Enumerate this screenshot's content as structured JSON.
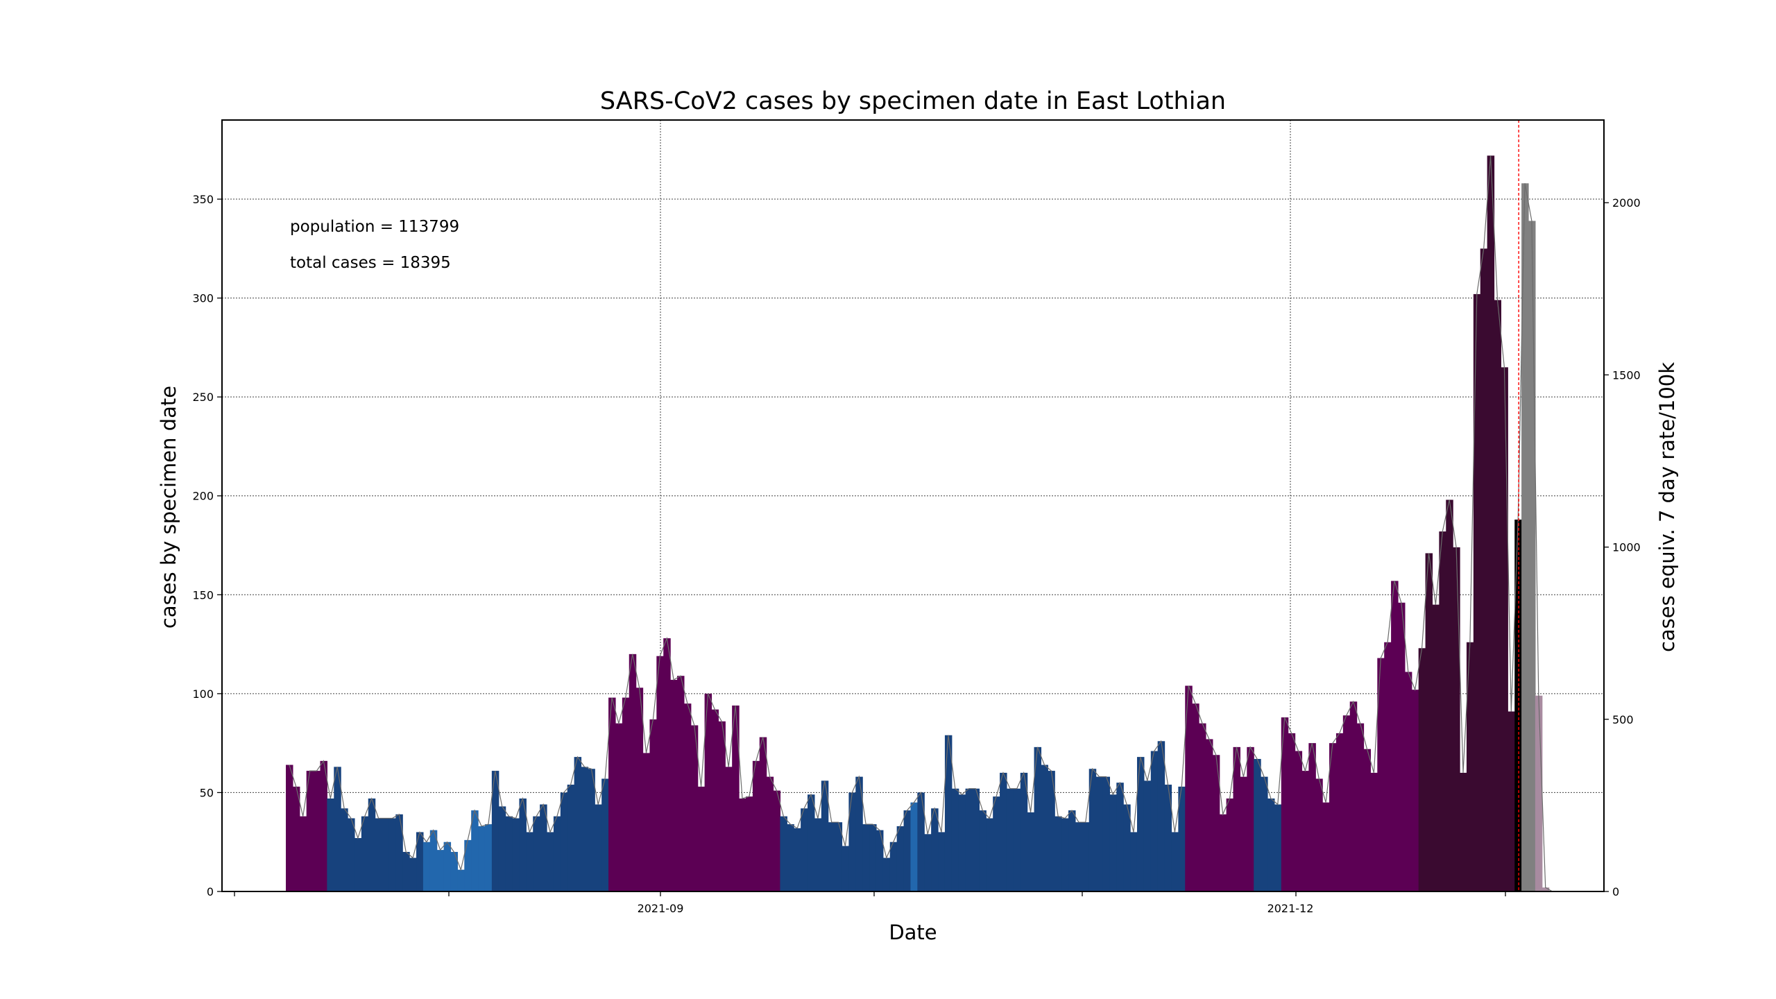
{
  "chart_data": {
    "type": "bar",
    "title": "SARS-CoV2 cases by specimen date in East Lothian",
    "xlabel": "Date",
    "ylabel": "cases by specimen date",
    "y2label": "cases equiv. 7 day rate/100k",
    "annotations": [
      "population = 113799",
      "total cases = 18395"
    ],
    "ylim": [
      0,
      390
    ],
    "y_ticks": [
      0,
      50,
      100,
      150,
      200,
      250,
      300,
      350
    ],
    "y2_ticks": [
      0,
      500,
      1000,
      1500,
      2000
    ],
    "x_tick_labels": [
      "2021-09",
      "2021-12"
    ],
    "grid": true,
    "start_date": "2021-06-29",
    "values": [
      64,
      53,
      38,
      61,
      61,
      66,
      47,
      63,
      42,
      37,
      27,
      38,
      47,
      37,
      37,
      37,
      39,
      20,
      17,
      30,
      25,
      31,
      21,
      25,
      20,
      11,
      26,
      41,
      33,
      34,
      61,
      43,
      38,
      37,
      47,
      30,
      38,
      44,
      30,
      38,
      50,
      54,
      68,
      63,
      62,
      44,
      57,
      98,
      85,
      98,
      120,
      103,
      70,
      87,
      119,
      128,
      107,
      109,
      95,
      84,
      53,
      100,
      92,
      86,
      63,
      94,
      47,
      48,
      66,
      78,
      58,
      51,
      38,
      34,
      32,
      42,
      49,
      37,
      56,
      35,
      35,
      23,
      50,
      58,
      34,
      34,
      31,
      17,
      25,
      33,
      41,
      45,
      50,
      29,
      42,
      30,
      79,
      52,
      49,
      52,
      52,
      41,
      37,
      48,
      60,
      52,
      52,
      60,
      40,
      73,
      64,
      61,
      38,
      37,
      41,
      35,
      35,
      62,
      58,
      58,
      49,
      55,
      44,
      30,
      68,
      56,
      71,
      76,
      54,
      30,
      53,
      104,
      95,
      85,
      77,
      69,
      39,
      47,
      73,
      58,
      73,
      67,
      58,
      47,
      44,
      88,
      80,
      71,
      61,
      75,
      57,
      45,
      75,
      80,
      89,
      96,
      85,
      72,
      60,
      118,
      126,
      157,
      146,
      111,
      102,
      123,
      171,
      145,
      182,
      198,
      174,
      60,
      126,
      302,
      325,
      372,
      299,
      265,
      91,
      188
    ],
    "bar_colors": [
      "#5c0054",
      "#5c0054",
      "#5c0054",
      "#5c0054",
      "#5c0054",
      "#5c0054",
      "#17427d",
      "#17427d",
      "#17427d",
      "#17427d",
      "#17427d",
      "#17427d",
      "#17427d",
      "#17427d",
      "#17427d",
      "#17427d",
      "#17427d",
      "#17427d",
      "#17427d",
      "#17427d",
      "#2267ad",
      "#2267ad",
      "#2267ad",
      "#2267ad",
      "#2267ad",
      "#2267ad",
      "#2267ad",
      "#2267ad",
      "#2267ad",
      "#2267ad",
      "#17427d",
      "#17427d",
      "#17427d",
      "#17427d",
      "#17427d",
      "#17427d",
      "#17427d",
      "#17427d",
      "#17427d",
      "#17427d",
      "#17427d",
      "#17427d",
      "#17427d",
      "#17427d",
      "#17427d",
      "#17427d",
      "#17427d",
      "#5c0054",
      "#5c0054",
      "#5c0054",
      "#5c0054",
      "#5c0054",
      "#5c0054",
      "#5c0054",
      "#5c0054",
      "#5c0054",
      "#5c0054",
      "#5c0054",
      "#5c0054",
      "#5c0054",
      "#5c0054",
      "#5c0054",
      "#5c0054",
      "#5c0054",
      "#5c0054",
      "#5c0054",
      "#5c0054",
      "#5c0054",
      "#5c0054",
      "#5c0054",
      "#5c0054",
      "#5c0054",
      "#17427d",
      "#17427d",
      "#17427d",
      "#17427d",
      "#17427d",
      "#17427d",
      "#17427d",
      "#17427d",
      "#17427d",
      "#17427d",
      "#17427d",
      "#17427d",
      "#17427d",
      "#17427d",
      "#17427d",
      "#17427d",
      "#17427d",
      "#17427d",
      "#17427d",
      "#2267ad",
      "#17427d",
      "#17427d",
      "#17427d",
      "#17427d",
      "#17427d",
      "#17427d",
      "#17427d",
      "#17427d",
      "#17427d",
      "#17427d",
      "#17427d",
      "#17427d",
      "#17427d",
      "#17427d",
      "#17427d",
      "#17427d",
      "#17427d",
      "#17427d",
      "#17427d",
      "#17427d",
      "#17427d",
      "#17427d",
      "#17427d",
      "#17427d",
      "#17427d",
      "#17427d",
      "#17427d",
      "#17427d",
      "#17427d",
      "#17427d",
      "#17427d",
      "#17427d",
      "#17427d",
      "#17427d",
      "#17427d",
      "#17427d",
      "#17427d",
      "#17427d",
      "#17427d",
      "#5c0054",
      "#5c0054",
      "#5c0054",
      "#5c0054",
      "#5c0054",
      "#5c0054",
      "#5c0054",
      "#5c0054",
      "#5c0054",
      "#5c0054",
      "#17427d",
      "#17427d",
      "#17427d",
      "#17427d",
      "#5c0054",
      "#5c0054",
      "#5c0054",
      "#5c0054",
      "#5c0054",
      "#5c0054",
      "#5c0054",
      "#5c0054",
      "#5c0054",
      "#5c0054",
      "#5c0054",
      "#5c0054",
      "#5c0054",
      "#5c0054",
      "#5c0054",
      "#5c0054",
      "#5c0054",
      "#5c0054",
      "#5c0054",
      "#5c0054",
      "#3a0a30",
      "#3a0a30",
      "#3a0a30",
      "#3a0a30",
      "#3a0a30",
      "#3a0a30",
      "#3a0a30",
      "#3a0a30",
      "#3a0a30",
      "#3a0a30",
      "#3a0a30",
      "#3a0a30",
      "#3a0a30",
      "#3a0a30",
      "#000000",
      "#000000",
      "#000000"
    ],
    "provisional_values": [
      358,
      339,
      99,
      2
    ],
    "provisional_colors": [
      "#808080",
      "#808080",
      "#a88ba0",
      "#a88ba0"
    ],
    "colors": {
      "grid": "#404040",
      "trend_line": "#6b6b6b",
      "cutoff_line": "#ff0000"
    }
  }
}
